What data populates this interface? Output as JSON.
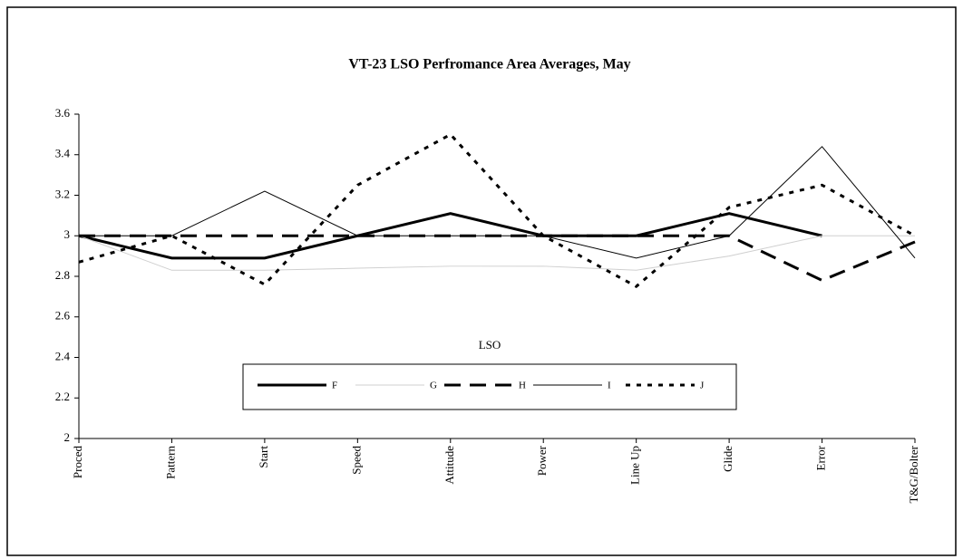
{
  "chart_data": {
    "type": "line",
    "title": "VT-23 LSO Perfromance Area Averages, May",
    "legend_title": "LSO",
    "categories": [
      "Proced",
      "Pattern",
      "Start",
      "Speed",
      "Attitude",
      "Power",
      "Line Up",
      "Glide",
      "Error",
      "T&G/Bolter"
    ],
    "series": [
      {
        "name": "F",
        "color": "#000000",
        "width": 3,
        "dash": "none",
        "values": [
          3,
          2.89,
          2.89,
          3,
          3.11,
          3,
          3,
          3.11,
          3.0,
          null
        ]
      },
      {
        "name": "G",
        "color": "#cfcfcf",
        "width": 1,
        "dash": "none",
        "values": [
          3,
          2.83,
          2.83,
          2.84,
          2.85,
          2.85,
          2.83,
          2.9,
          3.0,
          3.0
        ]
      },
      {
        "name": "H",
        "color": "#000000",
        "width": 3,
        "dash": "18 10",
        "values": [
          3,
          3,
          3,
          3,
          3,
          3,
          3,
          3,
          2.78,
          2.97
        ]
      },
      {
        "name": "I",
        "color": "#000000",
        "width": 1,
        "dash": "none",
        "values": [
          3,
          3,
          3.22,
          3,
          3,
          3,
          2.89,
          3,
          3.44,
          2.89
        ]
      },
      {
        "name": "J",
        "color": "#000000",
        "width": 3,
        "dash": "5 7",
        "values": [
          2.87,
          3,
          2.76,
          3.25,
          3.5,
          3.0,
          2.75,
          3.14,
          3.25,
          3.0
        ]
      }
    ],
    "ylim": [
      2,
      3.6
    ],
    "yticks": [
      2,
      {
        "value": 2.2,
        "label": "2.2"
      },
      {
        "value": 2.4,
        "label": "2.4"
      },
      {
        "value": 2.6,
        "label": "2.6"
      },
      {
        "value": 2.8,
        "label": "2.8"
      },
      3,
      {
        "value": 3.2,
        "label": "3.2"
      },
      {
        "value": 3.4,
        "label": "3.4"
      },
      {
        "value": 3.6,
        "label": "3.6"
      }
    ],
    "grid": false,
    "legend": "bottom"
  }
}
